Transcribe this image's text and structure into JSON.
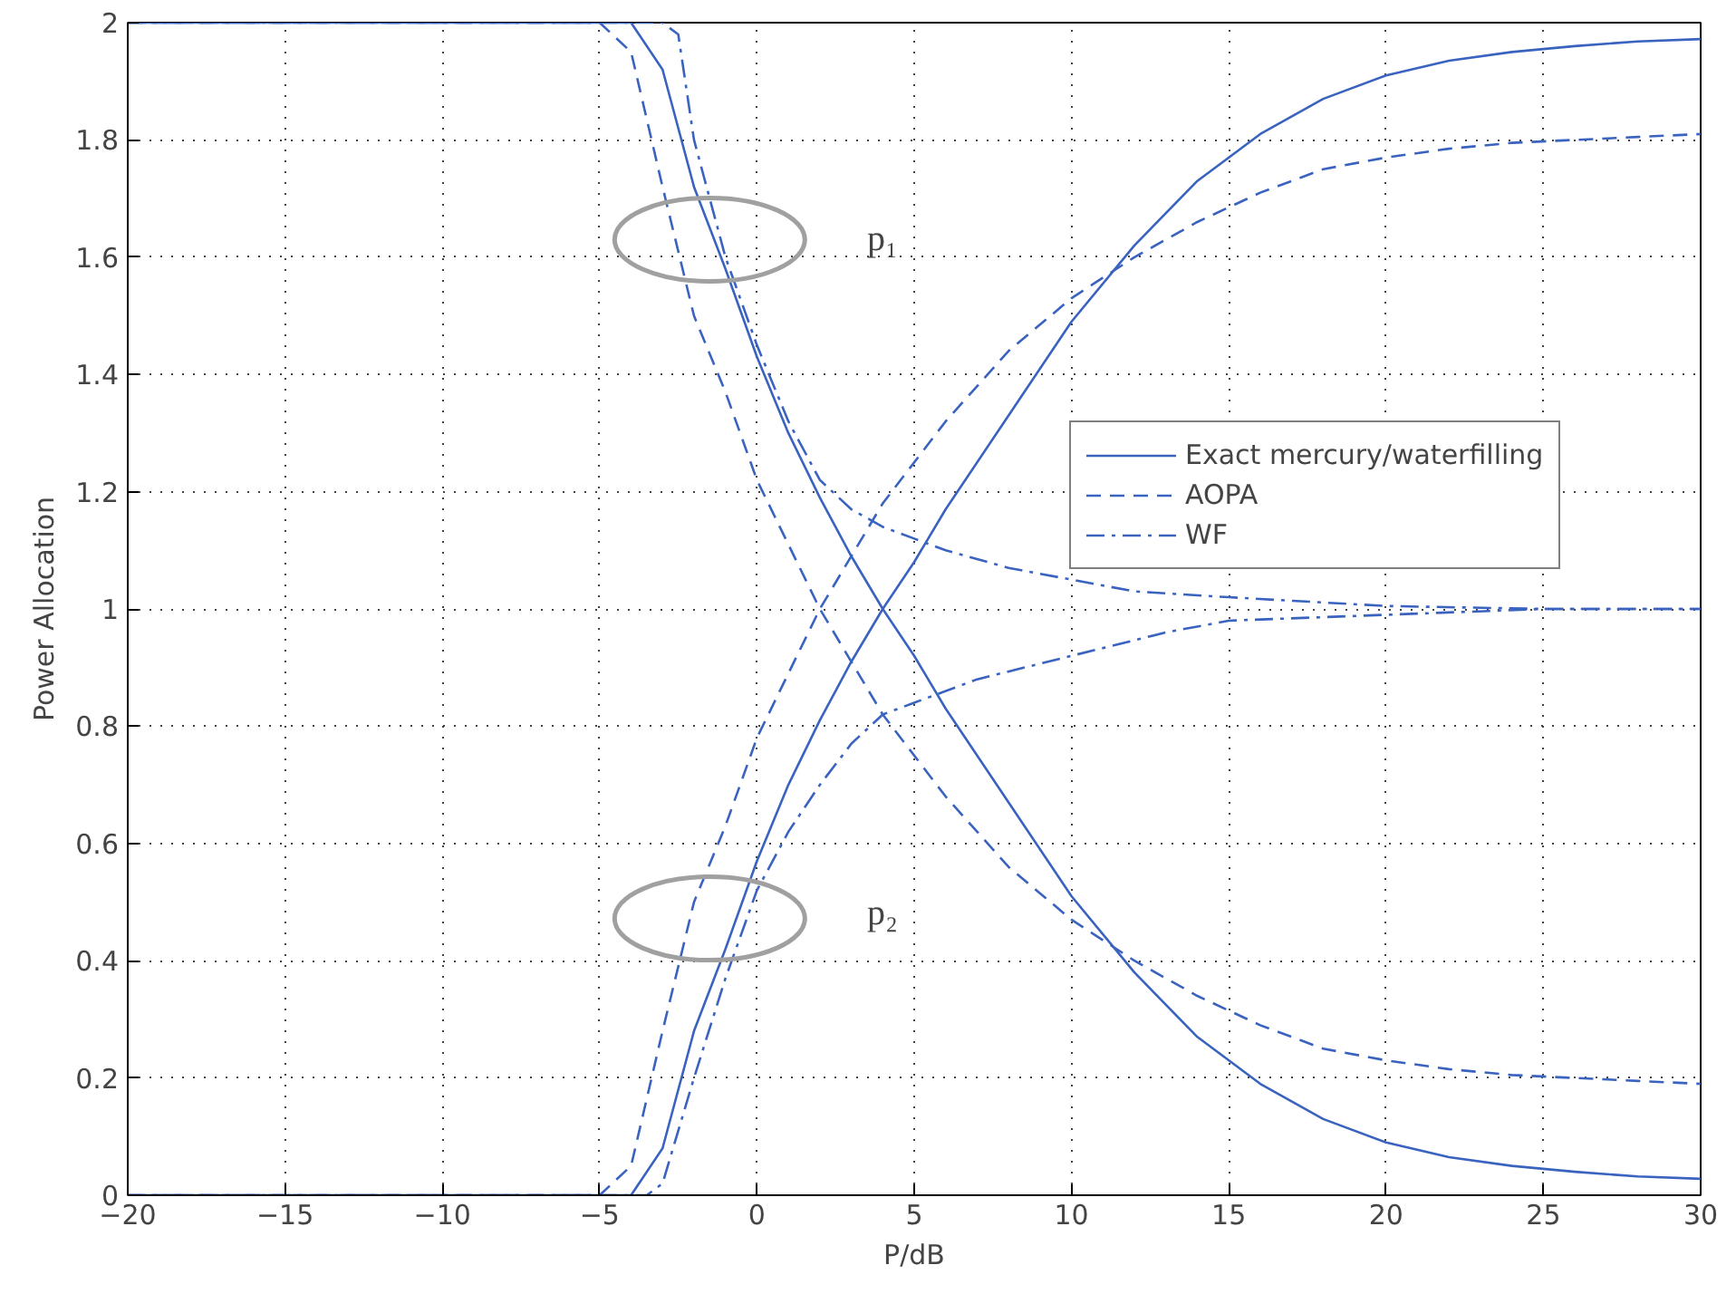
{
  "chart_data": {
    "type": "line",
    "xlabel": "P/dB",
    "ylabel": "Power Allocation",
    "xlim": [
      -20,
      30
    ],
    "ylim": [
      0,
      2
    ],
    "xticks": [
      {
        "value": -20,
        "label": "−20"
      },
      {
        "value": -15,
        "label": "−15"
      },
      {
        "value": -10,
        "label": "−10"
      },
      {
        "value": -5,
        "label": "−5"
      },
      0,
      5,
      10,
      15,
      20,
      25,
      30
    ],
    "yticks": [
      0,
      0.2,
      0.4,
      0.6,
      0.8,
      1,
      1.2,
      1.4,
      1.6,
      1.8,
      2
    ],
    "grid": true,
    "legend": "right",
    "marker": "none",
    "annotations": [
      "p₁",
      "p₂"
    ],
    "series": [
      {
        "name": "Exact mercury/waterfilling",
        "color": "#3a63c0",
        "line_style": "solid",
        "x": [
          -20,
          -4,
          -3,
          -2,
          -1,
          0,
          1,
          2,
          3,
          4,
          5,
          6,
          8,
          10,
          12,
          14,
          16,
          18,
          20,
          22,
          24,
          26,
          28,
          30
        ],
        "values": [
          2,
          2,
          1.92,
          1.72,
          1.58,
          1.43,
          1.3,
          1.19,
          1.09,
          1.0,
          0.92,
          0.83,
          0.67,
          0.51,
          0.38,
          0.27,
          0.19,
          0.13,
          0.09,
          0.065,
          0.05,
          0.04,
          0.032,
          0.028
        ]
      },
      {
        "color": "#3a63c0",
        "line_style": "solid",
        "x": [
          -20,
          -4,
          -3,
          -2,
          -1,
          0,
          1,
          2,
          3,
          4,
          5,
          6,
          8,
          10,
          12,
          14,
          16,
          18,
          20,
          22,
          24,
          26,
          28,
          30
        ],
        "values": [
          0,
          0,
          0.08,
          0.28,
          0.42,
          0.57,
          0.7,
          0.81,
          0.91,
          1.0,
          1.08,
          1.17,
          1.33,
          1.49,
          1.62,
          1.73,
          1.81,
          1.87,
          1.91,
          1.935,
          1.95,
          1.96,
          1.968,
          1.972
        ]
      },
      {
        "name": "AOPA",
        "color": "#3a63c0",
        "line_style": "dashed",
        "x": [
          -20,
          -5,
          -4,
          -3,
          -2,
          -1,
          0,
          2,
          4,
          6,
          8,
          10,
          12,
          14,
          16,
          18,
          20,
          22,
          24,
          26,
          28,
          30
        ],
        "values": [
          2,
          2,
          1.95,
          1.72,
          1.5,
          1.37,
          1.22,
          1.0,
          0.82,
          0.68,
          0.56,
          0.47,
          0.4,
          0.34,
          0.29,
          0.25,
          0.23,
          0.215,
          0.205,
          0.2,
          0.195,
          0.19
        ]
      },
      {
        "color": "#3a63c0",
        "line_style": "dashed",
        "x": [
          -20,
          -5,
          -4,
          -3,
          -2,
          -1,
          0,
          2,
          4,
          6,
          8,
          10,
          12,
          14,
          16,
          18,
          20,
          22,
          24,
          26,
          28,
          30
        ],
        "values": [
          0,
          0,
          0.05,
          0.28,
          0.5,
          0.63,
          0.78,
          1.0,
          1.18,
          1.32,
          1.44,
          1.53,
          1.6,
          1.66,
          1.71,
          1.75,
          1.77,
          1.785,
          1.795,
          1.8,
          1.805,
          1.81
        ]
      },
      {
        "name": "WF",
        "color": "#3a63c0",
        "line_style": "dashdot",
        "x": [
          -20,
          -3,
          -2.5,
          -2,
          -1,
          0,
          1,
          2,
          3,
          4,
          5,
          6,
          8,
          10,
          12,
          15,
          20,
          25,
          30
        ],
        "values": [
          2,
          2,
          1.98,
          1.8,
          1.6,
          1.45,
          1.32,
          1.22,
          1.17,
          1.14,
          1.12,
          1.1,
          1.07,
          1.05,
          1.03,
          1.02,
          1.005,
          1.0,
          1.0
        ]
      },
      {
        "color": "#3a63c0",
        "line_style": "dashdot",
        "x": [
          -20,
          -3.5,
          -3,
          -2,
          -1,
          0,
          1,
          2,
          3,
          4,
          5,
          7,
          10,
          13,
          15,
          20,
          25,
          30
        ],
        "values": [
          0,
          0,
          0.02,
          0.2,
          0.37,
          0.52,
          0.62,
          0.7,
          0.77,
          0.82,
          0.84,
          0.88,
          0.92,
          0.96,
          0.98,
          0.99,
          1.0,
          1.0
        ]
      }
    ]
  }
}
